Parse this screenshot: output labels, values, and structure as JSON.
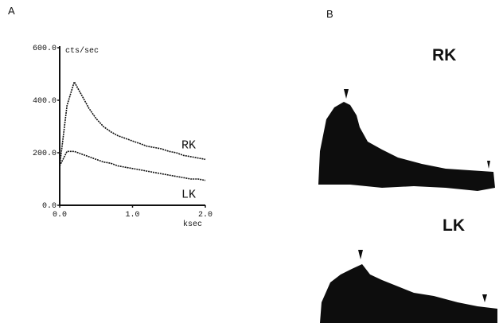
{
  "chart_data": {
    "type": "line",
    "panel_label": "A",
    "y_label": "cts/sec",
    "x_label": "ksec",
    "x": [
      0.0,
      0.1,
      0.2,
      0.3,
      0.4,
      0.5,
      0.6,
      0.7,
      0.8,
      0.9,
      1.0,
      1.1,
      1.2,
      1.3,
      1.4,
      1.5,
      1.6,
      1.7,
      1.8,
      1.9,
      2.0
    ],
    "series": [
      {
        "name": "RK",
        "color": "#111111",
        "values": [
          150,
          380,
          470,
          420,
          370,
          330,
          300,
          280,
          265,
          255,
          245,
          235,
          225,
          220,
          215,
          205,
          200,
          190,
          185,
          180,
          175
        ]
      },
      {
        "name": "LK",
        "color": "#111111",
        "values": [
          150,
          205,
          205,
          195,
          185,
          175,
          165,
          160,
          150,
          145,
          140,
          135,
          130,
          125,
          120,
          115,
          110,
          105,
          100,
          100,
          95
        ]
      }
    ],
    "xlim": [
      0,
      2.0
    ],
    "xticks": [
      {
        "value": 0,
        "label": "0.0"
      },
      {
        "value": 1,
        "label": "1.0"
      },
      {
        "value": 2,
        "label": "2.0"
      }
    ],
    "ylim": [
      0,
      600
    ],
    "yticks": [
      {
        "value": 0,
        "label": "0.0"
      },
      {
        "value": 200,
        "label": "200.0"
      },
      {
        "value": 400,
        "label": "400.0"
      },
      {
        "value": 600,
        "label": "600.0"
      }
    ]
  },
  "panel_b": {
    "label": "B",
    "images": [
      {
        "label": "RK"
      },
      {
        "label": "LK"
      }
    ]
  }
}
